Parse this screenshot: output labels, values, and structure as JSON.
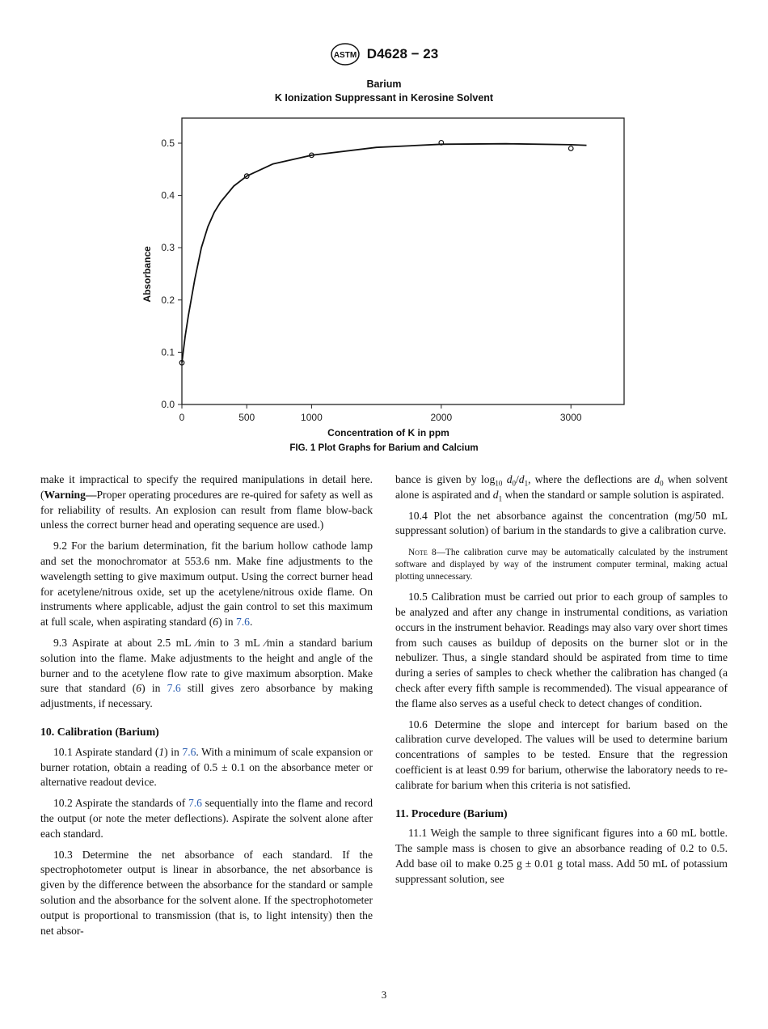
{
  "header": {
    "logo_text": "ASTM",
    "designation": "D4628 − 23"
  },
  "figure": {
    "title": "Barium",
    "subtitle": "K Ionization Suppressant in Kerosine Solvent",
    "caption": "FIG. 1 Plot Graphs for Barium and Calcium"
  },
  "chart_data": {
    "type": "scatter",
    "title": "Barium",
    "subtitle": "K Ionization Suppressant in Kerosine Solvent",
    "xlabel": "Concentration of K in ppm",
    "ylabel": "Absorbance",
    "xlim": [
      0,
      3410
    ],
    "ylim": [
      0,
      0.548
    ],
    "xticks": [
      0,
      500,
      1000,
      2000,
      3000
    ],
    "yticks": [
      0.0,
      0.1,
      0.2,
      0.3,
      0.4,
      0.5
    ],
    "ytick_labels": [
      "0.0",
      "0.1",
      "0.2",
      "0.3",
      "0.4",
      "0.5"
    ],
    "grid": false,
    "points": {
      "x": [
        0,
        500,
        1000,
        2000,
        3000
      ],
      "y": [
        0.08,
        0.437,
        0.477,
        0.501,
        0.49
      ]
    },
    "fit_curve": {
      "x": [
        0,
        25,
        50,
        100,
        150,
        200,
        250,
        300,
        400,
        500,
        700,
        1000,
        1500,
        2000,
        2500,
        3000,
        3120
      ],
      "y": [
        0.08,
        0.13,
        0.17,
        0.24,
        0.3,
        0.34,
        0.368,
        0.388,
        0.418,
        0.437,
        0.46,
        0.477,
        0.492,
        0.498,
        0.499,
        0.497,
        0.496
      ]
    }
  },
  "left_column": [
    {
      "type": "p",
      "cont": true,
      "parts": [
        {
          "t": "make it impractical to specify the required manipulations in detail here. ("
        },
        {
          "t": "Warning—",
          "s": "b"
        },
        {
          "t": "Proper operating procedures are re-­quired for safety as well as for reliability of results. An explosion can result from flame blow-back unless the correct burner head and operating sequence are used.)"
        }
      ]
    },
    {
      "type": "p",
      "parts": [
        {
          "t": "9.2 For the barium determination, fit the barium hollow cathode lamp and set the monochromator at 553.6 nm. Make fine adjustments to the wavelength setting to give maximum output. Using the correct burner head for acetylene/nitrous oxide, set up the acetylene/nitrous oxide flame. On instruments where applicable, adjust the gain control to set this maximum at full scale, when aspirating standard ("
        },
        {
          "t": "6",
          "s": "i"
        },
        {
          "t": ") in "
        },
        {
          "t": "7.6",
          "s": "link"
        },
        {
          "t": "."
        }
      ]
    },
    {
      "type": "p",
      "parts": [
        {
          "t": "9.3 Aspirate at about 2.5 mL ⁄min to 3 mL ⁄min a standard barium solution into the flame. Make adjustments to the height and angle of the burner and to the acetylene flow rate to give maximum absorption. Make sure that standard ("
        },
        {
          "t": "6",
          "s": "i"
        },
        {
          "t": ") in "
        },
        {
          "t": "7.6",
          "s": "link"
        },
        {
          "t": " still gives zero absorbance by making adjustments, if necessary."
        }
      ]
    },
    {
      "type": "h",
      "parts": [
        {
          "t": "10. Calibration (Barium)"
        }
      ]
    },
    {
      "type": "p",
      "parts": [
        {
          "t": "10.1 Aspirate standard ("
        },
        {
          "t": "1",
          "s": "i"
        },
        {
          "t": ") in "
        },
        {
          "t": "7.6",
          "s": "link"
        },
        {
          "t": ". With a minimum of scale expansion or burner rotation, obtain a reading of 0.5 ± 0.1 on the absorbance meter or alternative readout device."
        }
      ]
    },
    {
      "type": "p",
      "parts": [
        {
          "t": "10.2 Aspirate the standards of "
        },
        {
          "t": "7.6",
          "s": "link"
        },
        {
          "t": " sequentially into the flame and record the output (or note the meter deflections). Aspirate the solvent alone after each standard."
        }
      ]
    },
    {
      "type": "p",
      "parts": [
        {
          "t": "10.3 Determine the net absorbance of each standard. If the spectrophotometer output is linear in absorbance, the net absorbance is given by the difference between the absorbance for the standard or sample solution and the absorbance for the solvent alone. If the spectrophotometer output is proportional to transmission (that is, to light intensity) then the net absor-"
        }
      ]
    }
  ],
  "right_column": [
    {
      "type": "p",
      "cont": true,
      "parts": [
        {
          "t": "bance is given by log"
        },
        {
          "t": "10",
          "s": "sub"
        },
        {
          "t": " "
        },
        {
          "t": "d",
          "s": "i"
        },
        {
          "t": "0",
          "s": "sub"
        },
        {
          "t": "/"
        },
        {
          "t": "d",
          "s": "i"
        },
        {
          "t": "1",
          "s": "sub"
        },
        {
          "t": ", where the deflections are "
        },
        {
          "t": "d",
          "s": "i"
        },
        {
          "t": "0",
          "s": "sub"
        },
        {
          "t": " when solvent alone is aspirated and "
        },
        {
          "t": "d",
          "s": "i"
        },
        {
          "t": "1",
          "s": "sub"
        },
        {
          "t": " when the standard or sample solution is aspirated."
        }
      ]
    },
    {
      "type": "p",
      "parts": [
        {
          "t": "10.4 Plot the net absorbance against the concentration (mg/50 mL suppressant solution) of barium in the standards to give a calibration curve."
        }
      ]
    },
    {
      "type": "note",
      "parts": [
        {
          "t": "Note 8",
          "s": "sc"
        },
        {
          "t": "—The calibration curve may be automatically calculated by the instrument software and displayed by way of the instrument computer terminal, making actual plotting unnecessary."
        }
      ]
    },
    {
      "type": "p",
      "parts": [
        {
          "t": "10.5 Calibration must be carried out prior to each group of samples to be analyzed and after any change in instrumental conditions, as variation occurs in the instrument behavior. Readings may also vary over short times from such causes as buildup of deposits on the burner slot or in the nebulizer. Thus, a single standard should be aspirated from time to time during a series of samples to check whether the calibration has changed (a check after every fifth sample is recommended). The visual appearance of the flame also serves as a useful check to detect changes of condition."
        }
      ]
    },
    {
      "type": "p",
      "parts": [
        {
          "t": "10.6 Determine the slope and intercept for barium based on the calibration curve developed. The values will be used to determine barium concentrations of samples to be tested. Ensure that the regression coefficient is at least 0.99 for barium, otherwise the laboratory needs to re-calibrate for barium when this criteria is not satisfied."
        }
      ]
    },
    {
      "type": "h",
      "parts": [
        {
          "t": "11. Procedure (Barium)"
        }
      ]
    },
    {
      "type": "p",
      "parts": [
        {
          "t": "11.1 Weigh the sample to three significant figures into a 60 mL bottle. The sample mass is chosen to give an absorbance reading of 0.2 to 0.5. Add base oil to make 0.25 g ± 0.01 g total mass. Add 50 mL of potassium suppressant solution, see"
        }
      ]
    }
  ],
  "page_number": "3"
}
